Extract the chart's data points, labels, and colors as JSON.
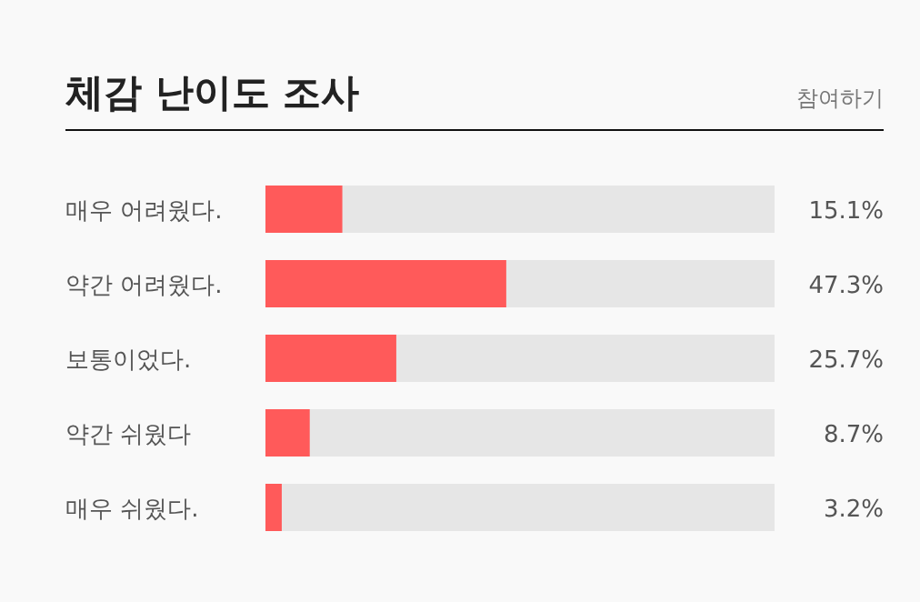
{
  "chart_data": {
    "type": "bar",
    "orientation": "horizontal",
    "title": "체감 난이도 조사",
    "annotations": [
      "참여하기"
    ],
    "categories": [
      "매우 어려웠다.",
      "약간 어려웠다.",
      "보통이었다.",
      "약간 쉬웠다",
      "매우 쉬웠다."
    ],
    "values": [
      15.1,
      47.3,
      25.7,
      8.7,
      3.2
    ],
    "value_labels": [
      "15.1%",
      "47.3%",
      "25.7%",
      "8.7%",
      "3.2%"
    ],
    "color": "#ff5a5a",
    "xlim": [
      0,
      100
    ]
  }
}
